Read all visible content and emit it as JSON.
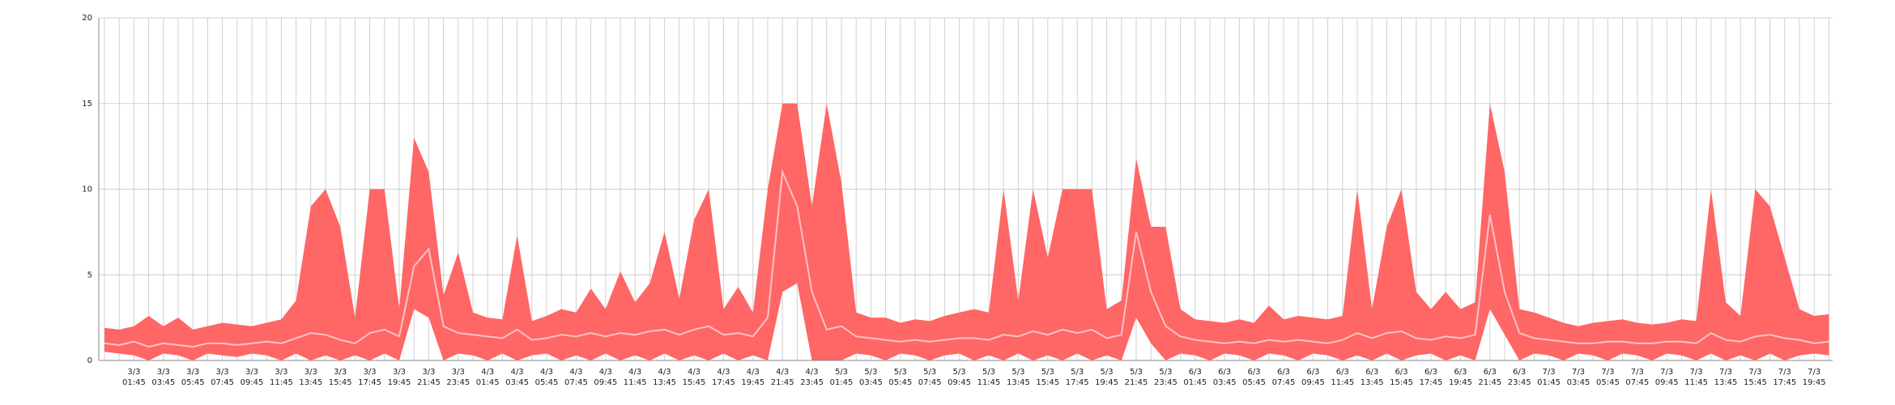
{
  "chart_data": {
    "type": "band",
    "ylim": [
      0,
      20
    ],
    "yticks": [
      0,
      5,
      10,
      15,
      20
    ],
    "grid": true,
    "categories": [
      null,
      null,
      [
        "3/3",
        "01:45"
      ],
      null,
      [
        "3/3",
        "03:45"
      ],
      null,
      [
        "3/3",
        "05:45"
      ],
      null,
      [
        "3/3",
        "07:45"
      ],
      null,
      [
        "3/3",
        "09:45"
      ],
      null,
      [
        "3/3",
        "11:45"
      ],
      null,
      [
        "3/3",
        "13:45"
      ],
      null,
      [
        "3/3",
        "15:45"
      ],
      null,
      [
        "3/3",
        "17:45"
      ],
      null,
      [
        "3/3",
        "19:45"
      ],
      null,
      [
        "3/3",
        "21:45"
      ],
      null,
      [
        "3/3",
        "23:45"
      ],
      null,
      [
        "4/3",
        "01:45"
      ],
      null,
      [
        "4/3",
        "03:45"
      ],
      null,
      [
        "4/3",
        "05:45"
      ],
      null,
      [
        "4/3",
        "07:45"
      ],
      null,
      [
        "4/3",
        "09:45"
      ],
      null,
      [
        "4/3",
        "11:45"
      ],
      null,
      [
        "4/3",
        "13:45"
      ],
      null,
      [
        "4/3",
        "15:45"
      ],
      null,
      [
        "4/3",
        "17:45"
      ],
      null,
      [
        "4/3",
        "19:45"
      ],
      null,
      [
        "4/3",
        "21:45"
      ],
      null,
      [
        "4/3",
        "23:45"
      ],
      null,
      [
        "5/3",
        "01:45"
      ],
      null,
      [
        "5/3",
        "03:45"
      ],
      null,
      [
        "5/3",
        "05:45"
      ],
      null,
      [
        "5/3",
        "07:45"
      ],
      null,
      [
        "5/3",
        "09:45"
      ],
      null,
      [
        "5/3",
        "11:45"
      ],
      null,
      [
        "5/3",
        "13:45"
      ],
      null,
      [
        "5/3",
        "15:45"
      ],
      null,
      [
        "5/3",
        "17:45"
      ],
      null,
      [
        "5/3",
        "19:45"
      ],
      null,
      [
        "5/3",
        "21:45"
      ],
      null,
      [
        "5/3",
        "23:45"
      ],
      null,
      [
        "6/3",
        "01:45"
      ],
      null,
      [
        "6/3",
        "03:45"
      ],
      null,
      [
        "6/3",
        "05:45"
      ],
      null,
      [
        "6/3",
        "07:45"
      ],
      null,
      [
        "6/3",
        "09:45"
      ],
      null,
      [
        "6/3",
        "11:45"
      ],
      null,
      [
        "6/3",
        "13:45"
      ],
      null,
      [
        "6/3",
        "15:45"
      ],
      null,
      [
        "6/3",
        "17:45"
      ],
      null,
      [
        "6/3",
        "19:45"
      ],
      null,
      [
        "6/3",
        "21:45"
      ],
      null,
      [
        "6/3",
        "23:45"
      ],
      null,
      [
        "7/3",
        "01:45"
      ],
      null,
      [
        "7/3",
        "03:45"
      ],
      null,
      [
        "7/3",
        "05:45"
      ],
      null,
      [
        "7/3",
        "07:45"
      ],
      null,
      [
        "7/3",
        "09:45"
      ],
      null,
      [
        "7/3",
        "11:45"
      ],
      null,
      [
        "7/3",
        "13:45"
      ],
      null,
      [
        "7/3",
        "15:45"
      ],
      null,
      [
        "7/3",
        "17:45"
      ],
      null,
      [
        "7/3",
        "19:45"
      ],
      null
    ],
    "band": {
      "color": "#ff6666",
      "high": [
        1.9,
        1.8,
        2.0,
        2.6,
        2.0,
        2.5,
        1.8,
        2.0,
        2.2,
        2.1,
        2.0,
        2.2,
        2.4,
        3.5,
        9.0,
        10.0,
        7.8,
        2.5,
        10.0,
        10.0,
        3.0,
        13.0,
        11.0,
        3.8,
        6.3,
        2.8,
        2.5,
        2.4,
        7.3,
        2.3,
        2.6,
        3.0,
        2.8,
        4.2,
        3.0,
        5.2,
        3.4,
        4.5,
        7.5,
        3.6,
        8.2,
        10.0,
        3.0,
        4.3,
        2.8,
        10.0,
        15.0,
        15.0,
        9.0,
        15.0,
        10.4,
        2.8,
        2.5,
        2.5,
        2.2,
        2.4,
        2.3,
        2.6,
        2.8,
        3.0,
        2.8,
        10.0,
        3.5,
        10.0,
        6.0,
        10.0,
        10.0,
        10.0,
        3.0,
        3.5,
        11.8,
        7.8,
        7.8,
        3.0,
        2.4,
        2.3,
        2.2,
        2.4,
        2.2,
        3.2,
        2.4,
        2.6,
        2.5,
        2.4,
        2.6,
        10.0,
        3.0,
        7.8,
        10.0,
        4.0,
        3.0,
        4.0,
        3.0,
        3.4,
        15.0,
        11.0,
        3.0,
        2.8,
        2.5,
        2.2,
        2.0,
        2.2,
        2.3,
        2.4,
        2.2,
        2.1,
        2.2,
        2.4,
        2.3,
        10.0,
        3.4,
        2.6,
        10.0,
        9.0,
        6.0,
        3.0,
        2.6,
        2.7
      ],
      "low": [
        0.5,
        0.4,
        0.3,
        0,
        0.4,
        0.3,
        0,
        0.4,
        0.3,
        0.2,
        0.4,
        0.3,
        0,
        0.4,
        0,
        0.3,
        0,
        0.3,
        0,
        0.4,
        0,
        3.0,
        2.5,
        0,
        0.4,
        0.3,
        0,
        0.4,
        0,
        0.3,
        0.4,
        0,
        0.3,
        0,
        0.4,
        0,
        0.3,
        0,
        0.4,
        0,
        0.3,
        0,
        0.4,
        0,
        0.3,
        0,
        4.0,
        4.5,
        0,
        0,
        0,
        0.4,
        0.3,
        0,
        0.4,
        0.3,
        0,
        0.3,
        0.4,
        0,
        0.3,
        0,
        0.4,
        0,
        0.3,
        0,
        0.4,
        0,
        0.3,
        0,
        2.5,
        1.0,
        0,
        0.4,
        0.3,
        0,
        0.4,
        0.3,
        0,
        0.4,
        0.3,
        0,
        0.4,
        0.3,
        0,
        0.3,
        0,
        0.4,
        0,
        0.3,
        0.4,
        0,
        0.3,
        0,
        3.0,
        1.5,
        0,
        0.4,
        0.3,
        0,
        0.4,
        0.3,
        0,
        0.4,
        0.3,
        0,
        0.4,
        0.3,
        0,
        0.4,
        0,
        0.3,
        0,
        0.4,
        0,
        0.3,
        0.4,
        0.3
      ]
    },
    "line": {
      "color": "#ffc2c2",
      "values": [
        1.0,
        0.9,
        1.1,
        0.8,
        1.0,
        0.9,
        0.8,
        1.0,
        1.0,
        0.9,
        1.0,
        1.1,
        1.0,
        1.3,
        1.6,
        1.5,
        1.2,
        1.0,
        1.6,
        1.8,
        1.4,
        5.5,
        6.5,
        2.0,
        1.6,
        1.5,
        1.4,
        1.3,
        1.8,
        1.2,
        1.3,
        1.5,
        1.4,
        1.6,
        1.4,
        1.6,
        1.5,
        1.7,
        1.8,
        1.5,
        1.8,
        2.0,
        1.5,
        1.6,
        1.4,
        2.5,
        11.0,
        9.0,
        4.0,
        1.8,
        2.0,
        1.4,
        1.3,
        1.2,
        1.1,
        1.2,
        1.1,
        1.2,
        1.3,
        1.3,
        1.2,
        1.5,
        1.4,
        1.7,
        1.5,
        1.8,
        1.6,
        1.8,
        1.3,
        1.5,
        7.5,
        4.0,
        2.0,
        1.4,
        1.2,
        1.1,
        1.0,
        1.1,
        1.0,
        1.2,
        1.1,
        1.2,
        1.1,
        1.0,
        1.2,
        1.6,
        1.3,
        1.6,
        1.7,
        1.3,
        1.2,
        1.4,
        1.3,
        1.5,
        8.5,
        4.0,
        1.6,
        1.3,
        1.2,
        1.1,
        1.0,
        1.0,
        1.1,
        1.1,
        1.0,
        1.0,
        1.1,
        1.1,
        1.0,
        1.6,
        1.2,
        1.1,
        1.4,
        1.5,
        1.3,
        1.2,
        1.0,
        1.1
      ]
    }
  }
}
